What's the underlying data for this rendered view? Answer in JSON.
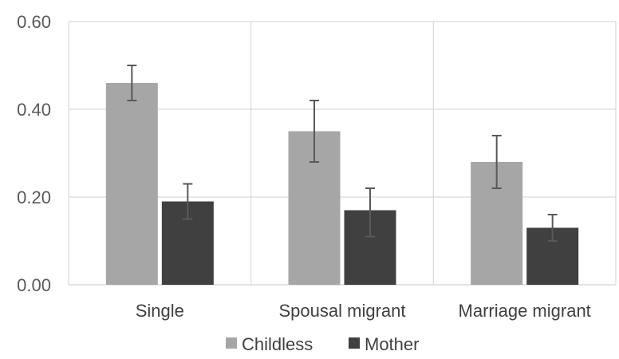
{
  "chart_data": {
    "type": "bar",
    "categories": [
      "Single",
      "Spousal migrant",
      "Marriage migrant"
    ],
    "series": [
      {
        "name": "Childless",
        "color": "#a6a6a6",
        "values": [
          0.46,
          0.35,
          0.28
        ],
        "error_low": [
          0.42,
          0.28,
          0.22
        ],
        "error_high": [
          0.5,
          0.42,
          0.34
        ]
      },
      {
        "name": "Mother",
        "color": "#404040",
        "values": [
          0.19,
          0.17,
          0.13
        ],
        "error_low": [
          0.15,
          0.11,
          0.1
        ],
        "error_high": [
          0.23,
          0.22,
          0.16
        ]
      }
    ],
    "ylim": [
      0,
      0.6
    ],
    "yticks": [
      "0.00",
      "0.20",
      "0.40",
      "0.60"
    ],
    "ytick_values": [
      0,
      0.2,
      0.4,
      0.6
    ],
    "grid": true,
    "legend_position": "bottom",
    "gridline_color": "#d9d9d9",
    "errorbar_color": "#595959"
  }
}
